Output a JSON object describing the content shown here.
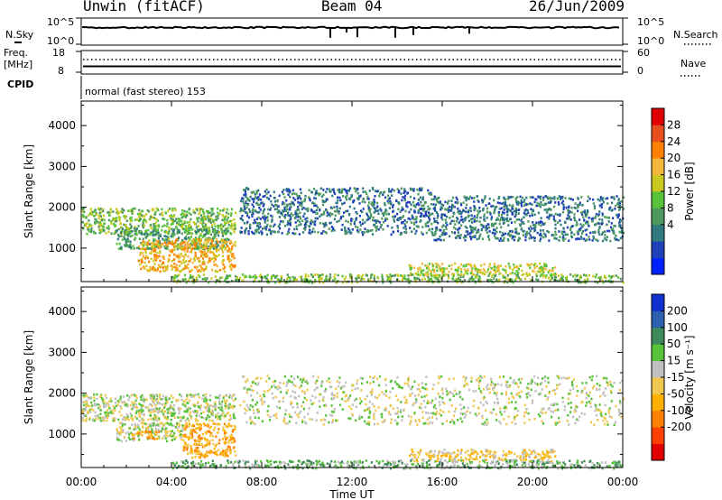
{
  "header": {
    "station": "Unwin (fitACF)",
    "beam": "Beam 04",
    "date": "26/Jun/2009"
  },
  "noise_panel": {
    "left_label": "N.Sky",
    "right_label": "N.Search",
    "left_ticks": [
      "10^5",
      "10^0"
    ],
    "right_ticks": [
      "10^5",
      "10^0"
    ]
  },
  "freq_panel": {
    "left_label_1": "Freq.",
    "left_label_2": "[MHz]",
    "right_label": "Nave",
    "left_ticks": [
      "18",
      "8"
    ],
    "right_ticks": [
      "60",
      "0"
    ]
  },
  "cpid": {
    "label": "CPID",
    "mode_text": "normal (fast stereo) 153"
  },
  "chart_data": [
    {
      "type": "heatmap",
      "title": "",
      "xlabel": "Time UT",
      "ylabel": "Slant Range [km]",
      "xlim": [
        "00:00",
        "24:00"
      ],
      "ylim": [
        180,
        4600
      ],
      "x_ticks": [
        "00:00",
        "04:00",
        "08:00",
        "12:00",
        "16:00",
        "20:00",
        "00:00"
      ],
      "y_ticks": [
        1000,
        2000,
        3000,
        4000
      ],
      "colorbar": {
        "label": "Power [dB]",
        "ticks": [
          "28",
          "24",
          "20",
          "16",
          "12",
          "8",
          "4"
        ],
        "colors": [
          "#0022ff",
          "#1f40b8",
          "#2f7a7e",
          "#4e9a5e",
          "#58c23a",
          "#c8c820",
          "#f2b63c",
          "#ff8000",
          "#e85020",
          "#e00000"
        ]
      },
      "regions": [
        {
          "t0": 0.0,
          "t1": 6.8,
          "r0": 1350,
          "r1": 2000,
          "level": 4
        },
        {
          "t0": 1.5,
          "t1": 6.5,
          "r0": 1000,
          "r1": 1500,
          "level": 3
        },
        {
          "t0": 2.5,
          "t1": 6.8,
          "r0": 450,
          "r1": 1250,
          "level": 6
        },
        {
          "t0": 7.0,
          "t1": 15.5,
          "r0": 1350,
          "r1": 2500,
          "level": 2
        },
        {
          "t0": 15.5,
          "t1": 24.0,
          "r0": 1200,
          "r1": 2300,
          "level": 2
        },
        {
          "t0": 14.5,
          "t1": 21.0,
          "r0": 350,
          "r1": 650,
          "level": 5
        },
        {
          "t0": 4.0,
          "t1": 24.0,
          "r0": 180,
          "r1": 380,
          "level": 4
        }
      ]
    },
    {
      "type": "heatmap",
      "title": "",
      "xlabel": "Time UT",
      "ylabel": "Slant Range [km]",
      "xlim": [
        "00:00",
        "24:00"
      ],
      "ylim": [
        180,
        4600
      ],
      "x_ticks": [
        "00:00",
        "04:00",
        "08:00",
        "12:00",
        "16:00",
        "20:00",
        "00:00"
      ],
      "y_ticks": [
        1000,
        2000,
        3000,
        4000
      ],
      "colorbar": {
        "label": "Velocity [m s⁻¹]",
        "ticks": [
          "200",
          "100",
          "50",
          "15",
          "-15",
          "-50",
          "-100",
          "-200"
        ],
        "colors": [
          "#e00000",
          "#ff4000",
          "#ff8000",
          "#ffb000",
          "#f0c850",
          "#c0c0c0",
          "#58c23a",
          "#3f8a5a",
          "#2e60b0",
          "#1030d0"
        ]
      },
      "regions": [
        {
          "t0": 0.0,
          "t1": 6.8,
          "r0": 1350,
          "r1": 2000,
          "level": 5
        },
        {
          "t0": 1.5,
          "t1": 4.5,
          "r0": 850,
          "r1": 1300,
          "level": 5
        },
        {
          "t0": 2.2,
          "t1": 3.4,
          "r0": 900,
          "r1": 1100,
          "level": 3
        },
        {
          "t0": 4.5,
          "t1": 6.8,
          "r0": 450,
          "r1": 1300,
          "level": 3
        },
        {
          "t0": 7.0,
          "t1": 24.0,
          "r0": 1250,
          "r1": 2450,
          "level": 5
        },
        {
          "t0": 14.5,
          "t1": 21.0,
          "r0": 350,
          "r1": 650,
          "level": 4
        },
        {
          "t0": 4.0,
          "t1": 24.0,
          "r0": 180,
          "r1": 380,
          "level": 6
        }
      ]
    }
  ]
}
